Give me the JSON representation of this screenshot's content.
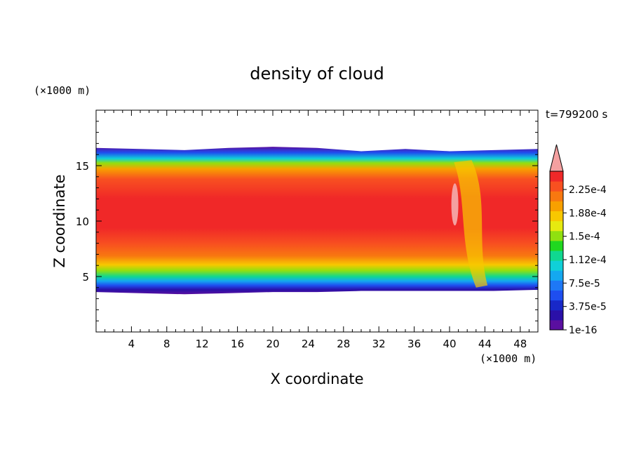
{
  "chart_data": {
    "type": "heatmap",
    "title": "density of cloud",
    "xlabel": "X coordinate",
    "ylabel": "Z coordinate",
    "x_unit": "(×1000 m)",
    "y_unit": "(×1000 m)",
    "time_label": "t=799200 s",
    "xlim": [
      0,
      50
    ],
    "ylim": [
      0,
      20
    ],
    "x_ticks": [
      4,
      8,
      12,
      16,
      20,
      24,
      28,
      32,
      36,
      40,
      44,
      48
    ],
    "y_ticks": [
      5,
      10,
      15
    ],
    "colorbar": {
      "labels": [
        "2.25e-4",
        "1.88e-4",
        "1.5e-4",
        "1.12e-4",
        "7.5e-5",
        "3.75e-5",
        "1e-16"
      ],
      "extend": "max",
      "colors": [
        "#5a0fa0",
        "#2a10a8",
        "#1828c8",
        "#1e4ef0",
        "#1e78f6",
        "#14a8f0",
        "#10d0d8",
        "#10d890",
        "#20d820",
        "#90e010",
        "#e6ea10",
        "#f8c800",
        "#f8a000",
        "#f87810",
        "#f85020",
        "#f02828"
      ],
      "over_color": "#f4a0a0"
    },
    "cloud_layer": {
      "base_z": [
        3.6,
        3.5,
        3.4,
        3.5,
        3.6,
        3.6,
        3.7,
        3.7,
        3.7,
        3.7,
        3.8
      ],
      "top_z": [
        16.6,
        16.5,
        16.4,
        16.6,
        16.7,
        16.6,
        16.3,
        16.5,
        16.3,
        16.4,
        16.5
      ],
      "x": [
        0,
        5,
        10,
        15,
        20,
        25,
        30,
        35,
        40,
        45,
        50
      ],
      "max_density": "2.25e-4"
    }
  },
  "colors": {
    "frame": "#000000",
    "background": "#ffffff"
  }
}
